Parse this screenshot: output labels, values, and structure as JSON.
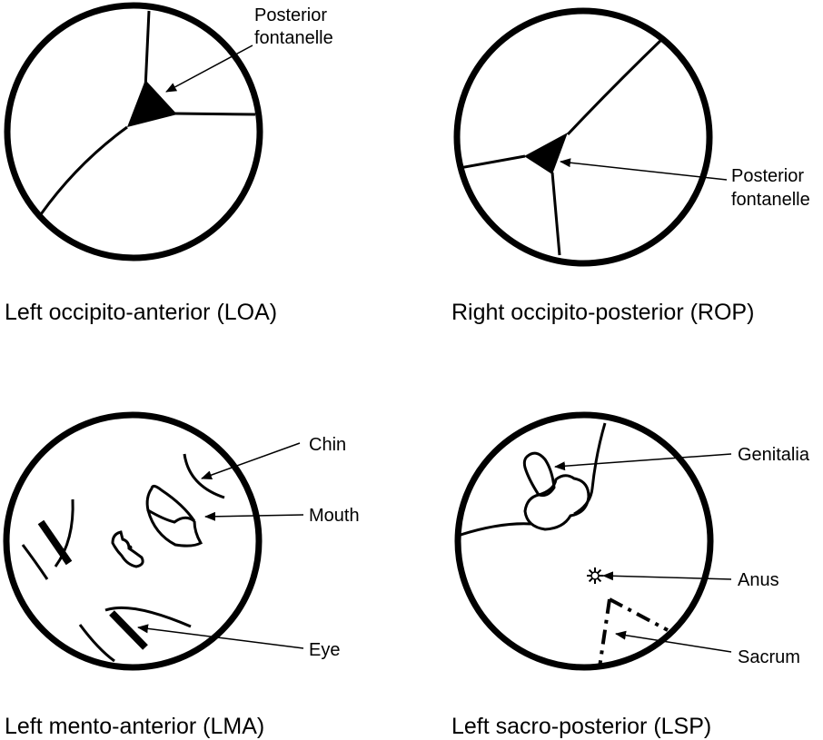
{
  "panels": [
    {
      "caption": "Left occipito-anterior (LOA)",
      "labels": {
        "posterior_fontanelle_line1": "Posterior",
        "posterior_fontanelle_line2": "fontanelle"
      }
    },
    {
      "caption": "Right occipito-posterior (ROP)",
      "labels": {
        "posterior_fontanelle_line1": "Posterior",
        "posterior_fontanelle_line2": "fontanelle"
      }
    },
    {
      "caption": "Left mento-anterior (LMA)",
      "labels": {
        "chin": "Chin",
        "mouth": "Mouth",
        "eye": "Eye"
      }
    },
    {
      "caption": "Left sacro-posterior (LSP)",
      "labels": {
        "genitalia": "Genitalia",
        "anus": "Anus",
        "sacrum": "Sacrum"
      }
    }
  ]
}
